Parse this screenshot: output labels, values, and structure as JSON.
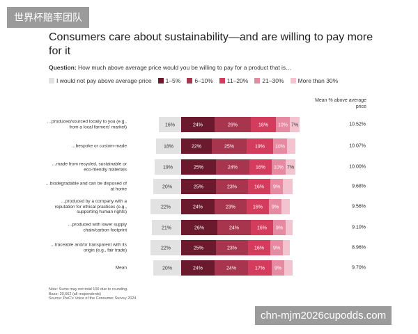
{
  "watermarks": {
    "top": "世界杯赔率团队",
    "bottom": "chn-mjm2026cupodds.com"
  },
  "chart_data": {
    "type": "bar",
    "orientation": "horizontal",
    "stacked": true,
    "title": "Consumers care about sustainability—and are willing to pay more for it",
    "question_label": "Question:",
    "question": "How much above average price would you be willing to pay for a product that is…",
    "mean_header": "Mean % above average price",
    "categories": [
      "…produced/sourced locally to you (e.g., from a local farmers' market)",
      "…bespoke or custom-made",
      "…made from recycled, sustainable or eco-friendly materials",
      "…biodegradable and can be disposed of at home",
      "…produced by a company with a reputation for ethical practices (e.g., supporting human rights)",
      "…produced with lower supply chain/carbon footprint",
      "…traceable and/or transparent with its origin (e.g., fair trade)",
      "Mean"
    ],
    "series": [
      {
        "name": "I would not pay above average price",
        "color": "#e2e2e2",
        "values": [
          16,
          18,
          19,
          20,
          22,
          21,
          22,
          20
        ],
        "value_labels": [
          "16%",
          "18%",
          "19%",
          "20%",
          "22%",
          "21%",
          "22%",
          "20%"
        ]
      },
      {
        "name": "1–5%",
        "color": "#6b1a2d",
        "values": [
          24,
          22,
          25,
          25,
          24,
          26,
          25,
          24
        ],
        "value_labels": [
          "24%",
          "22%",
          "25%",
          "25%",
          "24%",
          "26%",
          "25%",
          "24%"
        ]
      },
      {
        "name": "6–10%",
        "color": "#a6354d",
        "values": [
          26,
          25,
          24,
          23,
          23,
          24,
          23,
          24
        ],
        "value_labels": [
          "26%",
          "25%",
          "24%",
          "23%",
          "23%",
          "24%",
          "23%",
          "24%"
        ]
      },
      {
        "name": "11–20%",
        "color": "#d43c5d",
        "values": [
          18,
          19,
          16,
          16,
          16,
          16,
          16,
          17
        ],
        "value_labels": [
          "18%",
          "19%",
          "16%",
          "16%",
          "16%",
          "16%",
          "16%",
          "17%"
        ]
      },
      {
        "name": "21–30%",
        "color": "#e68aa1",
        "values": [
          10,
          10,
          10,
          9,
          9,
          9,
          9,
          9
        ],
        "value_labels": [
          "10%",
          "10%",
          "10%",
          "9%",
          "9%",
          "9%",
          "9%",
          "9%"
        ]
      },
      {
        "name": "More than 30%",
        "color": "#f3c4d0",
        "values": [
          7,
          6,
          7,
          7,
          6,
          5,
          5,
          6
        ],
        "value_labels": [
          "7%",
          null,
          "7%",
          null,
          null,
          null,
          null,
          null
        ]
      }
    ],
    "mean_values": [
      10.52,
      10.07,
      10.0,
      9.68,
      9.56,
      9.1,
      8.96,
      9.7
    ],
    "mean_labels": [
      "10.52%",
      "10.07%",
      "10.00%",
      "9.68%",
      "9.56%",
      "9.10%",
      "8.96%",
      "9.70%"
    ],
    "notes": [
      "Note: Sums may not total 100 due to rounding.",
      "Base: 20,662 (all respondents)",
      "Source: PwC's Voice of the Consumer Survey 2024"
    ]
  }
}
